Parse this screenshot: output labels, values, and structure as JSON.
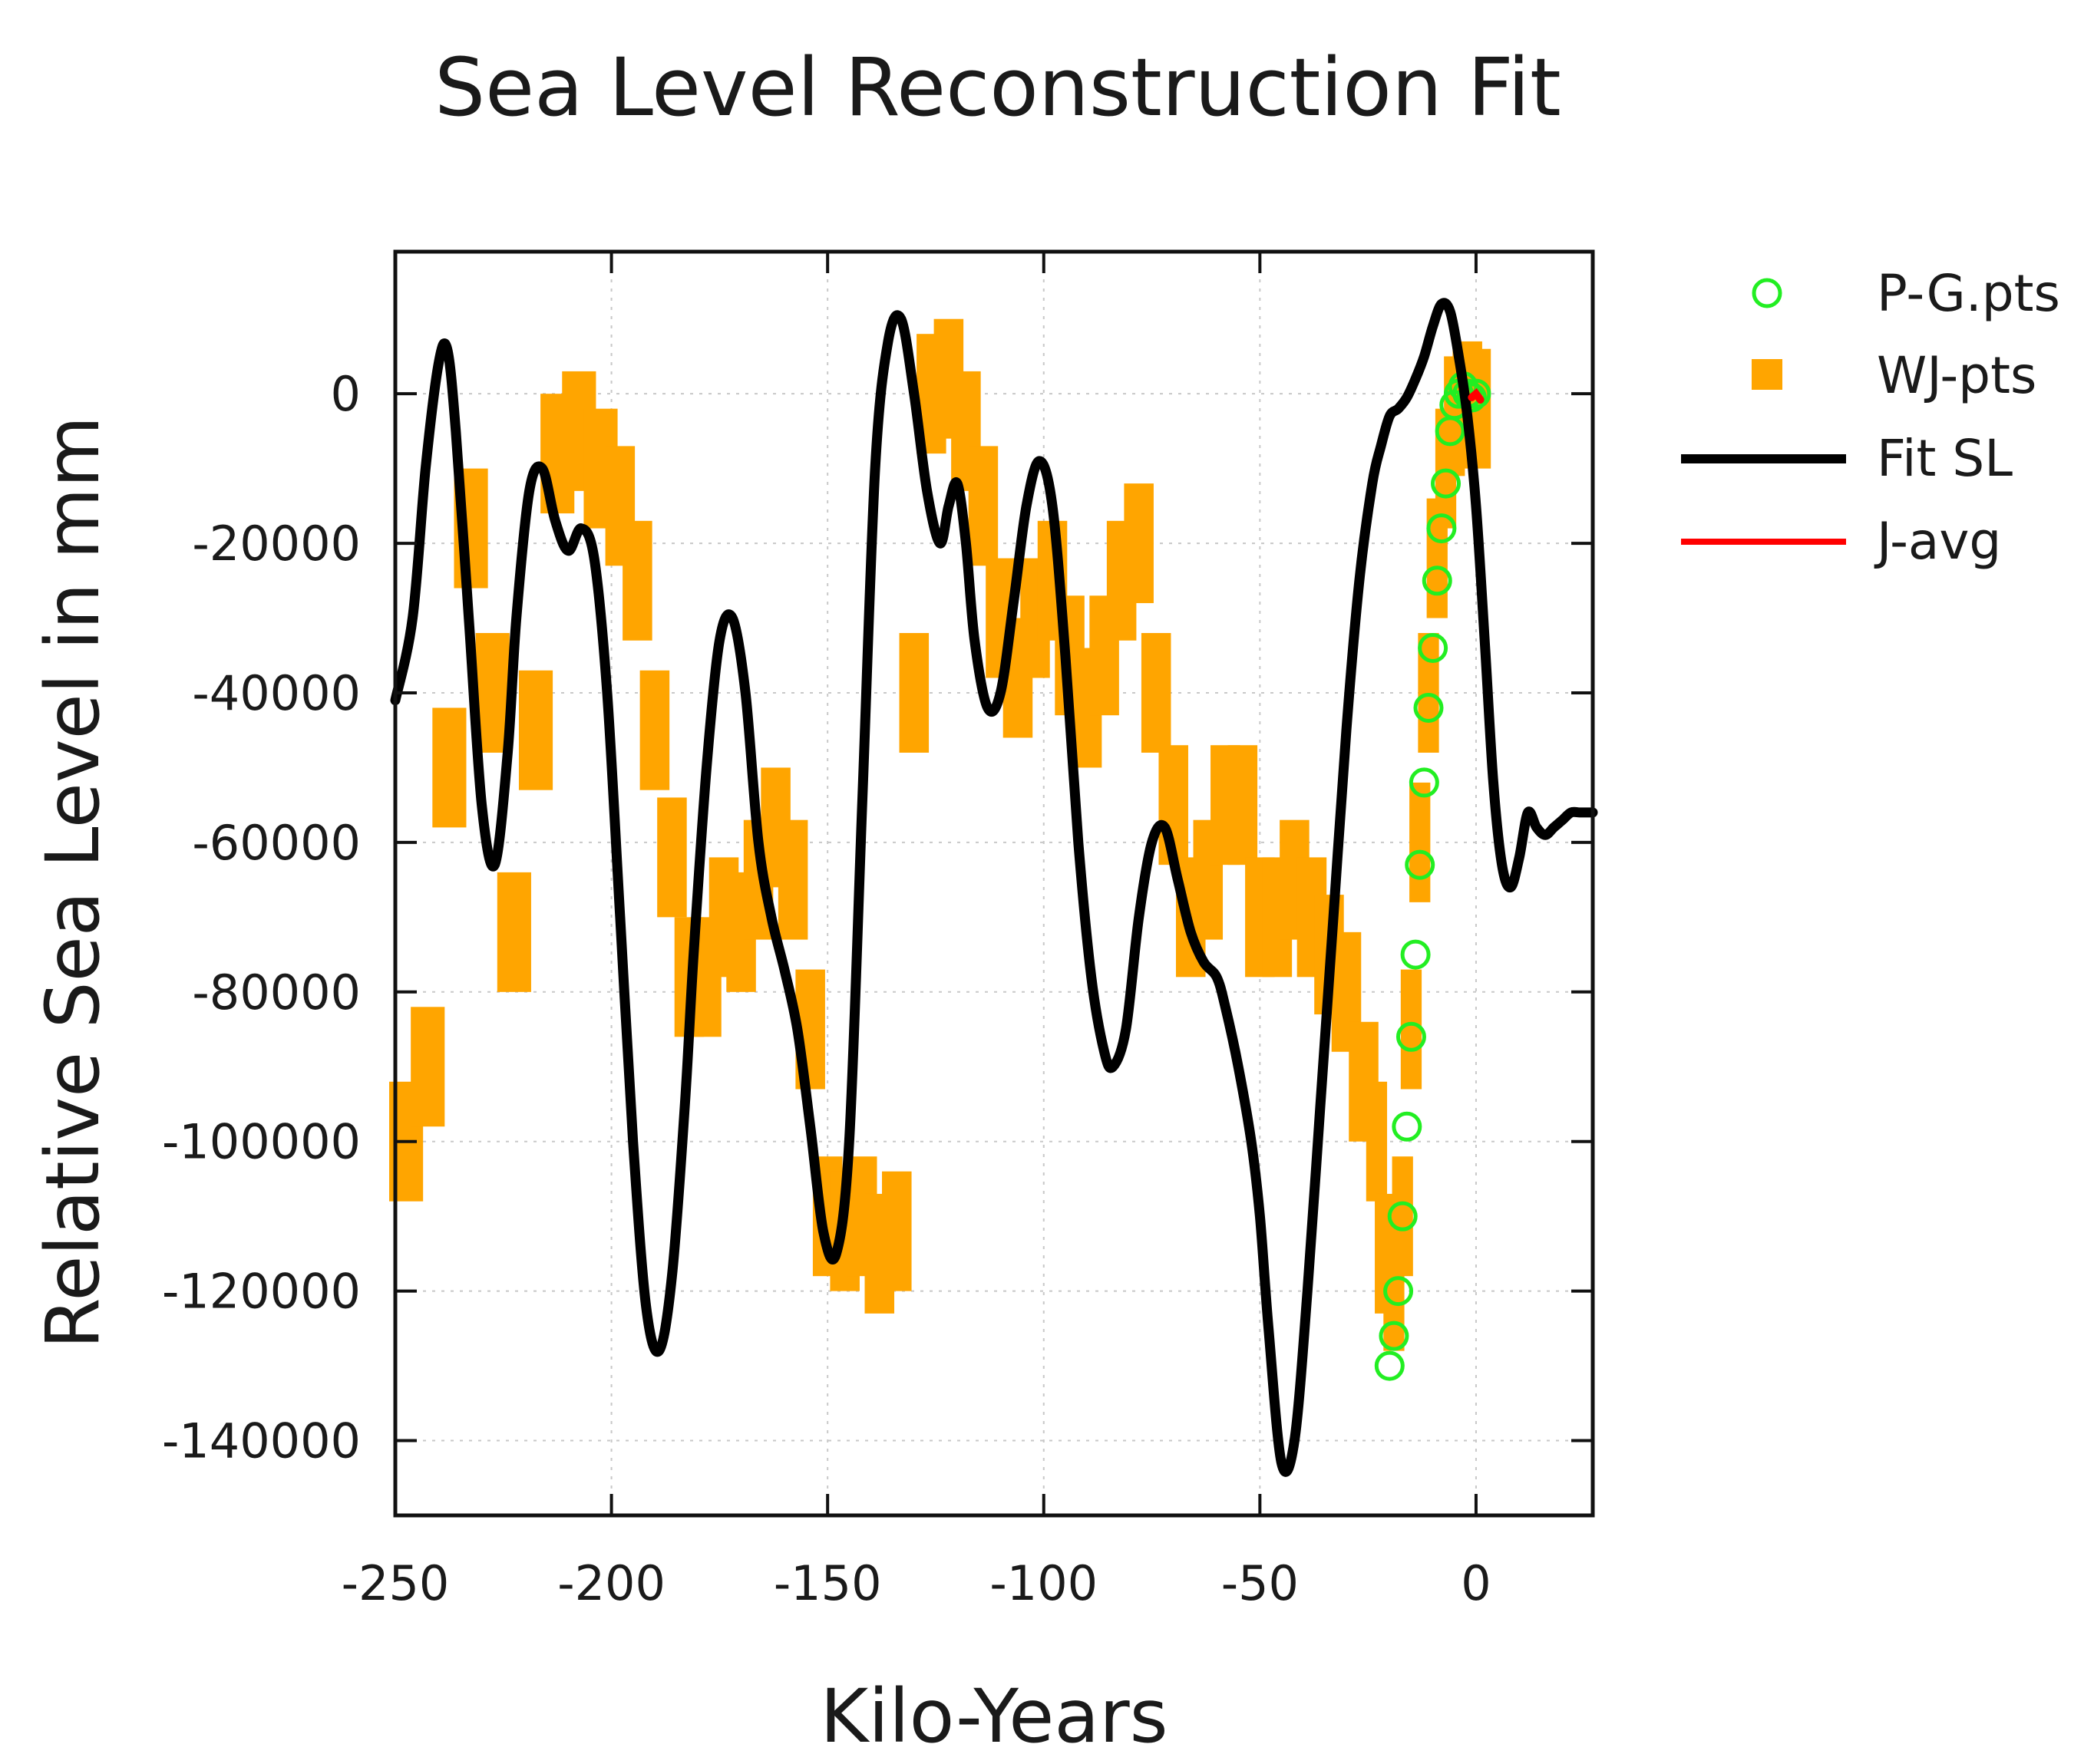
{
  "chart_data": {
    "type": "line",
    "title": "Sea Level Reconstruction Fit",
    "xlabel": "Kilo-Years",
    "ylabel": "Relative Sea Level in mm",
    "xlim": [
      -250,
      27
    ],
    "ylim": [
      -150000,
      19000
    ],
    "xticks": [
      -250,
      -200,
      -150,
      -100,
      -50,
      0
    ],
    "yticks": [
      0,
      -20000,
      -40000,
      -60000,
      -80000,
      -100000,
      -120000,
      -140000
    ],
    "grid": true,
    "legend_position": "outside-top-right",
    "colors": {
      "pg": "#22ee22",
      "wj": "#ffa500",
      "fit": "#000000",
      "javg": "#ff0000"
    },
    "series": [
      {
        "name": "P-G.pts",
        "kind": "scatter",
        "marker": "open-circle",
        "x": [
          -20,
          -19,
          -18,
          -17,
          -16,
          -15,
          -14,
          -13,
          -12,
          -11,
          -10,
          -9,
          -8,
          -7,
          -6,
          -5,
          -4,
          -3,
          -2,
          -1,
          0
        ],
        "y": [
          -130000,
          -126000,
          -120000,
          -110000,
          -98000,
          -86000,
          -75000,
          -63000,
          -52000,
          -42000,
          -34000,
          -25000,
          -18000,
          -12000,
          -5000,
          -1500,
          0,
          1000,
          0,
          -500,
          0
        ]
      },
      {
        "name": "WJ-pts",
        "kind": "band",
        "marker": "filled-square",
        "halfwidth": 8000,
        "x": [
          -250,
          -245,
          -240,
          -235,
          -230,
          -225,
          -220,
          -215,
          -210,
          -205,
          -200,
          -196,
          -192,
          -188,
          -184,
          -180,
          -176,
          -172,
          -168,
          -164,
          -160,
          -156,
          -152,
          -148,
          -144,
          -140,
          -136,
          -132,
          -128,
          -124,
          -120,
          -116,
          -112,
          -108,
          -104,
          -100,
          -96,
          -92,
          -88,
          -84,
          -80,
          -76,
          -72,
          -68,
          -64,
          -60,
          -56,
          -52,
          -48,
          -44,
          -40,
          -36,
          -32,
          -28,
          -24,
          -22,
          -20,
          -18,
          -16,
          -14,
          -12,
          -10,
          -8,
          -6,
          -4,
          -2,
          0
        ],
        "y": [
          -100000,
          -90000,
          -50000,
          -18000,
          -40000,
          -72000,
          -45000,
          -8000,
          -5000,
          -10000,
          -15000,
          -25000,
          -45000,
          -62000,
          -78000,
          -78000,
          -70000,
          -72000,
          -65000,
          -58000,
          -65000,
          -85000,
          -110000,
          -112000,
          -110000,
          -115000,
          -112000,
          -40000,
          0,
          2000,
          -5000,
          -15000,
          -30000,
          -38000,
          -30000,
          -25000,
          -35000,
          -42000,
          -35000,
          -25000,
          -20000,
          -40000,
          -55000,
          -70000,
          -65000,
          -55000,
          -55000,
          -70000,
          -70000,
          -65000,
          -70000,
          -75000,
          -80000,
          -92000,
          -100000,
          -115000,
          -120000,
          -110000,
          -85000,
          -60000,
          -40000,
          -22000,
          -10000,
          -3000,
          -2000,
          -1000,
          -2000
        ]
      },
      {
        "name": "Fit SL",
        "kind": "line",
        "x": [
          -250,
          -246,
          -243,
          -240,
          -238,
          -236,
          -233,
          -230,
          -227,
          -224,
          -222,
          -219,
          -216,
          -213,
          -210,
          -207,
          -204,
          -201,
          -198,
          -195,
          -192,
          -189,
          -186,
          -183,
          -181,
          -178,
          -175,
          -172,
          -169,
          -166,
          -163,
          -160,
          -157,
          -154,
          -151,
          -148,
          -145,
          -142,
          -139,
          -136,
          -133,
          -130,
          -127,
          -124,
          -122,
          -120,
          -118,
          -116,
          -113,
          -110,
          -107,
          -104,
          -101,
          -98,
          -95,
          -92,
          -89,
          -86,
          -84,
          -81,
          -78,
          -75,
          -72,
          -69,
          -66,
          -63,
          -60,
          -58,
          -55,
          -52,
          -50,
          -48,
          -45,
          -42,
          -39,
          -36,
          -33,
          -30,
          -27,
          -24,
          -22,
          -20,
          -18,
          -16,
          -14,
          -12,
          -10,
          -8,
          -6,
          -4,
          -2,
          0,
          2,
          4,
          6,
          8,
          10,
          12,
          14,
          16,
          18,
          20,
          22,
          24,
          26,
          27
        ],
        "y": [
          -41000,
          -30000,
          -10000,
          4000,
          6000,
          -5000,
          -30000,
          -55000,
          -63000,
          -48000,
          -30000,
          -13000,
          -10000,
          -17000,
          -21000,
          -18000,
          -22000,
          -40000,
          -70000,
          -100000,
          -122000,
          -128000,
          -118000,
          -95000,
          -75000,
          -50000,
          -33000,
          -30000,
          -40000,
          -60000,
          -70000,
          -77000,
          -85000,
          -98000,
          -112000,
          -115000,
          -100000,
          -55000,
          -10000,
          7000,
          10000,
          0,
          -13000,
          -20000,
          -15000,
          -12000,
          -20000,
          -33000,
          -42000,
          -40000,
          -28000,
          -15000,
          -9000,
          -15000,
          -35000,
          -60000,
          -78000,
          -88000,
          -90000,
          -85000,
          -70000,
          -60000,
          -58000,
          -65000,
          -72000,
          -76000,
          -78000,
          -82000,
          -90000,
          -100000,
          -110000,
          -125000,
          -143000,
          -140000,
          -120000,
          -95000,
          -70000,
          -45000,
          -25000,
          -12000,
          -7000,
          -3000,
          -2000,
          -500,
          2000,
          5000,
          9000,
          12000,
          11000,
          5000,
          -3000,
          -15000,
          -33000,
          -52000,
          -63000,
          -66000,
          -62000,
          -56000,
          -58000,
          -59000,
          -58000,
          -57000,
          -56000,
          -56000,
          -56000,
          -56000
        ]
      },
      {
        "name": "J-avg",
        "kind": "line",
        "x": [
          -1,
          0,
          1
        ],
        "y": [
          -500,
          0,
          -800
        ]
      }
    ]
  }
}
